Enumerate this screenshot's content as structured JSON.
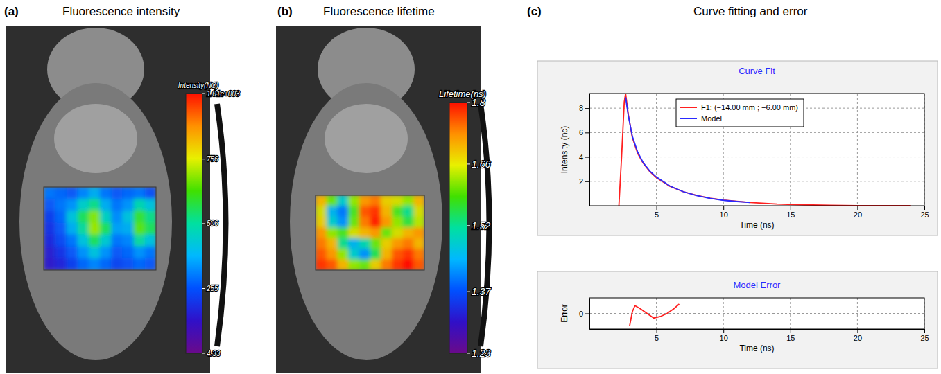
{
  "chart_data": [
    {
      "type": "heatmap",
      "panel_label": "(a)",
      "title": "Fluorescence intensity",
      "colorbar_title": "Intensity(NC)",
      "cells": [
        [
          300,
          280,
          260,
          320,
          380,
          300,
          260,
          280,
          300,
          250
        ],
        [
          260,
          300,
          340,
          450,
          520,
          380,
          300,
          340,
          480,
          420
        ],
        [
          220,
          280,
          420,
          560,
          680,
          460,
          330,
          420,
          600,
          520
        ],
        [
          200,
          260,
          380,
          500,
          700,
          560,
          360,
          380,
          640,
          560
        ],
        [
          180,
          240,
          300,
          420,
          560,
          440,
          300,
          320,
          500,
          420
        ],
        [
          150,
          200,
          260,
          340,
          420,
          340,
          260,
          280,
          340,
          300
        ],
        [
          140,
          170,
          220,
          280,
          320,
          280,
          230,
          250,
          280,
          260
        ]
      ],
      "colorbar_range": [
        4.33,
        1010
      ],
      "colorbar_ticks": [
        {
          "value": 1010,
          "label": "1.01e+003"
        },
        756,
        506,
        255,
        4.33
      ]
    },
    {
      "type": "heatmap",
      "panel_label": "(b)",
      "title": "Fluorescence lifetime",
      "colorbar_title": "Lifetime(ns)",
      "cells": [
        [
          1.7,
          1.6,
          1.48,
          1.62,
          1.72,
          1.74,
          1.68,
          1.66,
          1.62,
          1.7
        ],
        [
          1.66,
          1.45,
          1.4,
          1.58,
          1.76,
          1.78,
          1.7,
          1.58,
          1.52,
          1.66
        ],
        [
          1.68,
          1.48,
          1.42,
          1.6,
          1.74,
          1.79,
          1.72,
          1.62,
          1.56,
          1.64
        ],
        [
          1.72,
          1.62,
          1.58,
          1.66,
          1.7,
          1.72,
          1.6,
          1.66,
          1.7,
          1.72
        ],
        [
          1.74,
          1.7,
          1.52,
          1.45,
          1.5,
          1.6,
          1.68,
          1.72,
          1.74,
          1.7
        ],
        [
          1.76,
          1.72,
          1.62,
          1.48,
          1.42,
          1.55,
          1.7,
          1.76,
          1.78,
          1.74
        ],
        [
          1.78,
          1.76,
          1.7,
          1.62,
          1.6,
          1.68,
          1.74,
          1.78,
          1.8,
          1.76
        ]
      ],
      "colorbar_range": [
        1.23,
        1.8
      ],
      "colorbar_ticks": [
        1.8,
        1.66,
        1.52,
        1.37,
        1.23
      ]
    },
    {
      "type": "line",
      "panel_label": "(c)",
      "panel_title": "Curve fitting and error",
      "title": "Curve Fit",
      "x_label": "Time (ns)",
      "y_label": "Intensity (nc)",
      "xlim": [
        0,
        25
      ],
      "xticks": [
        5,
        10,
        15,
        20,
        25
      ],
      "ylim": [
        0,
        9.2
      ],
      "yticks": [
        2,
        4,
        6,
        8
      ],
      "grid": true,
      "legend": "top",
      "series": [
        {
          "name": "F1: (−14.00 mm ; −6.00 mm)",
          "color": "#ff2020",
          "x": [
            2.2,
            2.4,
            2.6,
            2.7,
            2.9,
            3.2,
            3.6,
            4,
            4.5,
            5,
            6,
            7,
            8,
            9,
            10,
            12,
            14,
            16,
            18,
            20,
            22,
            24
          ],
          "values": [
            0,
            4,
            8.5,
            9.2,
            7.5,
            5.6,
            4.3,
            3.5,
            2.8,
            2.3,
            1.6,
            1.15,
            0.85,
            0.62,
            0.46,
            0.26,
            0.14,
            0.07,
            0.03,
            0.01,
            0,
            0
          ]
        },
        {
          "name": "Model",
          "color": "#2a2aff",
          "x": [
            2.7,
            2.9,
            3.2,
            3.6,
            4,
            4.5,
            5,
            6,
            7,
            8,
            9,
            10,
            11,
            12
          ],
          "values": [
            8.9,
            7.4,
            5.7,
            4.4,
            3.55,
            2.85,
            2.35,
            1.62,
            1.15,
            0.83,
            0.6,
            0.44,
            0.34,
            0.26
          ]
        }
      ]
    },
    {
      "type": "line",
      "title": "Model Error",
      "x_label": "Time (ns)",
      "y_label": "Error",
      "xlim": [
        0,
        25
      ],
      "xticks": [
        5,
        10,
        15,
        20,
        25
      ],
      "ylim": [
        -1,
        1
      ],
      "yticks": [
        0
      ],
      "grid": true,
      "series": [
        {
          "color": "#ff2020",
          "x": [
            3.0,
            3.2,
            3.4,
            3.6,
            3.8,
            4.3,
            4.8,
            5.3,
            5.8,
            6.3,
            6.7
          ],
          "values": [
            -0.8,
            0.1,
            0.5,
            0.4,
            0.3,
            0,
            -0.3,
            -0.2,
            0,
            0.3,
            0.6
          ]
        }
      ]
    }
  ]
}
